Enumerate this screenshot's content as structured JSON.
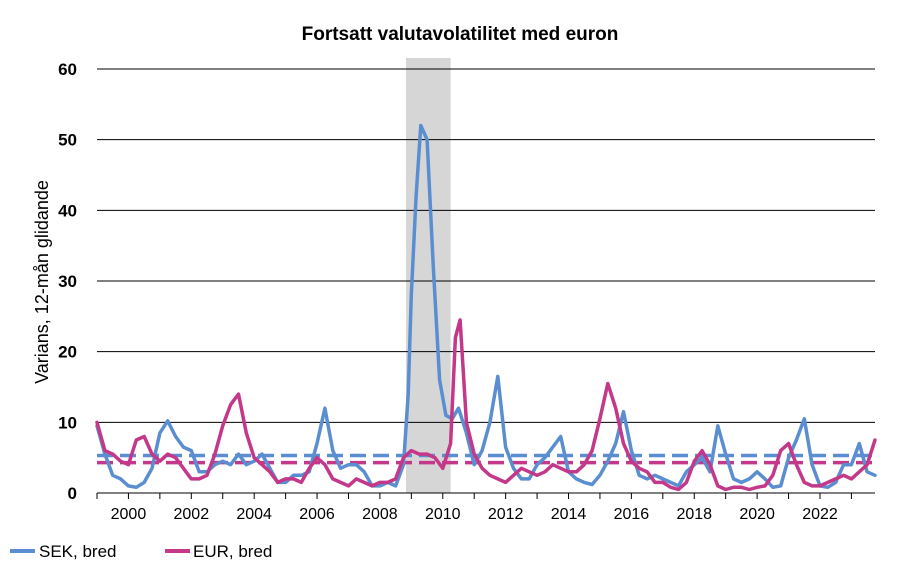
{
  "colors": {
    "sek": "#5b8ed0",
    "eur": "#c4388a",
    "shade": "#d6d6d6",
    "grid": "#000000"
  },
  "chart_data": {
    "type": "line",
    "title": "Fortsatt valutavolatilitet med euron",
    "ylabel": "Varians, 12-mån glidande",
    "xlabel": "",
    "ylim": [
      0,
      60
    ],
    "xlim": [
      1999.0,
      2023.75
    ],
    "yticks": [
      0,
      10,
      20,
      30,
      40,
      50,
      60
    ],
    "xticks": [
      "2000",
      "2002",
      "2004",
      "2006",
      "2008",
      "2010",
      "2012",
      "2014",
      "2016",
      "2018",
      "2020",
      "2022"
    ],
    "grid": true,
    "legend": "bottom-left",
    "shaded_period": [
      2008.83,
      2010.25
    ],
    "series": [
      {
        "name": "SEK, bred",
        "mean": 5.3,
        "x": [
          1999.0,
          1999.25,
          1999.5,
          1999.75,
          2000.0,
          2000.25,
          2000.5,
          2000.75,
          2001.0,
          2001.25,
          2001.5,
          2001.75,
          2002.0,
          2002.25,
          2002.5,
          2002.75,
          2003.0,
          2003.25,
          2003.5,
          2003.75,
          2004.0,
          2004.25,
          2004.5,
          2004.75,
          2005.0,
          2005.25,
          2005.5,
          2005.75,
          2006.0,
          2006.25,
          2006.5,
          2006.75,
          2007.0,
          2007.25,
          2007.5,
          2007.75,
          2008.0,
          2008.25,
          2008.5,
          2008.75,
          2008.9,
          2009.0,
          2009.15,
          2009.3,
          2009.5,
          2009.7,
          2009.9,
          2010.1,
          2010.3,
          2010.5,
          2010.75,
          2011.0,
          2011.25,
          2011.5,
          2011.75,
          2012.0,
          2012.25,
          2012.5,
          2012.75,
          2013.0,
          2013.25,
          2013.5,
          2013.75,
          2014.0,
          2014.25,
          2014.5,
          2014.75,
          2015.0,
          2015.25,
          2015.5,
          2015.75,
          2016.0,
          2016.25,
          2016.5,
          2016.75,
          2017.0,
          2017.25,
          2017.5,
          2017.75,
          2018.0,
          2018.25,
          2018.5,
          2018.75,
          2019.0,
          2019.25,
          2019.5,
          2019.75,
          2020.0,
          2020.25,
          2020.5,
          2020.75,
          2021.0,
          2021.25,
          2021.5,
          2021.75,
          2022.0,
          2022.25,
          2022.5,
          2022.75,
          2023.0,
          2023.25,
          2023.5,
          2023.75
        ],
        "values": [
          9.5,
          5.5,
          2.5,
          2.0,
          1.0,
          0.8,
          1.5,
          3.5,
          8.5,
          10.2,
          8.0,
          6.5,
          6.0,
          3.0,
          3.0,
          4.0,
          4.5,
          4.0,
          5.5,
          4.0,
          4.5,
          5.5,
          3.5,
          1.5,
          1.5,
          2.5,
          2.5,
          3.0,
          7.0,
          12.0,
          6.0,
          3.5,
          4.0,
          4.0,
          3.0,
          1.0,
          1.0,
          1.5,
          1.0,
          4.0,
          14.0,
          28.0,
          42.0,
          52.0,
          50.0,
          32.0,
          16.0,
          11.0,
          10.5,
          12.0,
          8.5,
          4.0,
          6.0,
          10.0,
          16.5,
          6.5,
          3.5,
          2.0,
          2.0,
          4.0,
          5.0,
          6.5,
          8.0,
          3.0,
          2.0,
          1.5,
          1.2,
          2.5,
          4.5,
          7.0,
          11.5,
          6.0,
          2.5,
          2.0,
          2.5,
          2.0,
          1.5,
          1.0,
          3.0,
          4.0,
          5.0,
          3.0,
          9.5,
          5.5,
          2.0,
          1.5,
          2.0,
          3.0,
          2.0,
          0.8,
          1.0,
          5.0,
          7.5,
          10.5,
          4.0,
          1.0,
          0.8,
          1.5,
          4.0,
          4.0,
          7.0,
          3.0,
          2.5
        ]
      },
      {
        "name": "EUR, bred",
        "mean": 4.3,
        "x": [
          1999.0,
          1999.25,
          1999.5,
          1999.75,
          2000.0,
          2000.25,
          2000.5,
          2000.75,
          2001.0,
          2001.25,
          2001.5,
          2001.75,
          2002.0,
          2002.25,
          2002.5,
          2002.75,
          2003.0,
          2003.25,
          2003.5,
          2003.75,
          2004.0,
          2004.25,
          2004.5,
          2004.75,
          2005.0,
          2005.25,
          2005.5,
          2005.75,
          2006.0,
          2006.25,
          2006.5,
          2006.75,
          2007.0,
          2007.25,
          2007.5,
          2007.75,
          2008.0,
          2008.25,
          2008.5,
          2008.75,
          2009.0,
          2009.25,
          2009.5,
          2009.75,
          2010.0,
          2010.25,
          2010.4,
          2010.55,
          2010.75,
          2011.0,
          2011.25,
          2011.5,
          2011.75,
          2012.0,
          2012.25,
          2012.5,
          2012.75,
          2013.0,
          2013.25,
          2013.5,
          2013.75,
          2014.0,
          2014.25,
          2014.5,
          2014.75,
          2015.0,
          2015.25,
          2015.5,
          2015.75,
          2016.0,
          2016.25,
          2016.5,
          2016.75,
          2017.0,
          2017.25,
          2017.5,
          2017.75,
          2018.0,
          2018.25,
          2018.5,
          2018.75,
          2019.0,
          2019.25,
          2019.5,
          2019.75,
          2020.0,
          2020.25,
          2020.5,
          2020.75,
          2021.0,
          2021.25,
          2021.5,
          2021.75,
          2022.0,
          2022.25,
          2022.5,
          2022.75,
          2023.0,
          2023.25,
          2023.5,
          2023.75
        ],
        "values": [
          10.0,
          6.0,
          5.5,
          4.5,
          4.0,
          7.5,
          8.0,
          5.5,
          4.5,
          5.5,
          5.0,
          3.5,
          2.0,
          2.0,
          2.5,
          5.5,
          9.5,
          12.5,
          14.0,
          8.5,
          5.0,
          4.0,
          3.0,
          1.5,
          2.0,
          2.0,
          1.5,
          3.5,
          5.0,
          4.0,
          2.0,
          1.5,
          1.0,
          2.0,
          1.5,
          1.0,
          1.5,
          1.5,
          2.0,
          5.0,
          6.0,
          5.5,
          5.5,
          5.0,
          3.5,
          7.0,
          22.0,
          24.5,
          10.0,
          5.5,
          3.5,
          2.5,
          2.0,
          1.5,
          2.5,
          3.5,
          3.0,
          2.5,
          3.0,
          4.0,
          3.5,
          3.0,
          3.0,
          4.0,
          6.0,
          10.5,
          15.5,
          12.0,
          7.0,
          4.5,
          3.5,
          3.0,
          1.5,
          1.5,
          0.8,
          0.5,
          1.5,
          4.5,
          6.0,
          4.0,
          1.0,
          0.5,
          0.8,
          0.8,
          0.5,
          0.8,
          1.0,
          2.5,
          6.0,
          7.0,
          4.0,
          1.5,
          1.0,
          1.0,
          1.5,
          2.0,
          2.5,
          2.0,
          3.0,
          4.0,
          7.5
        ]
      }
    ]
  }
}
